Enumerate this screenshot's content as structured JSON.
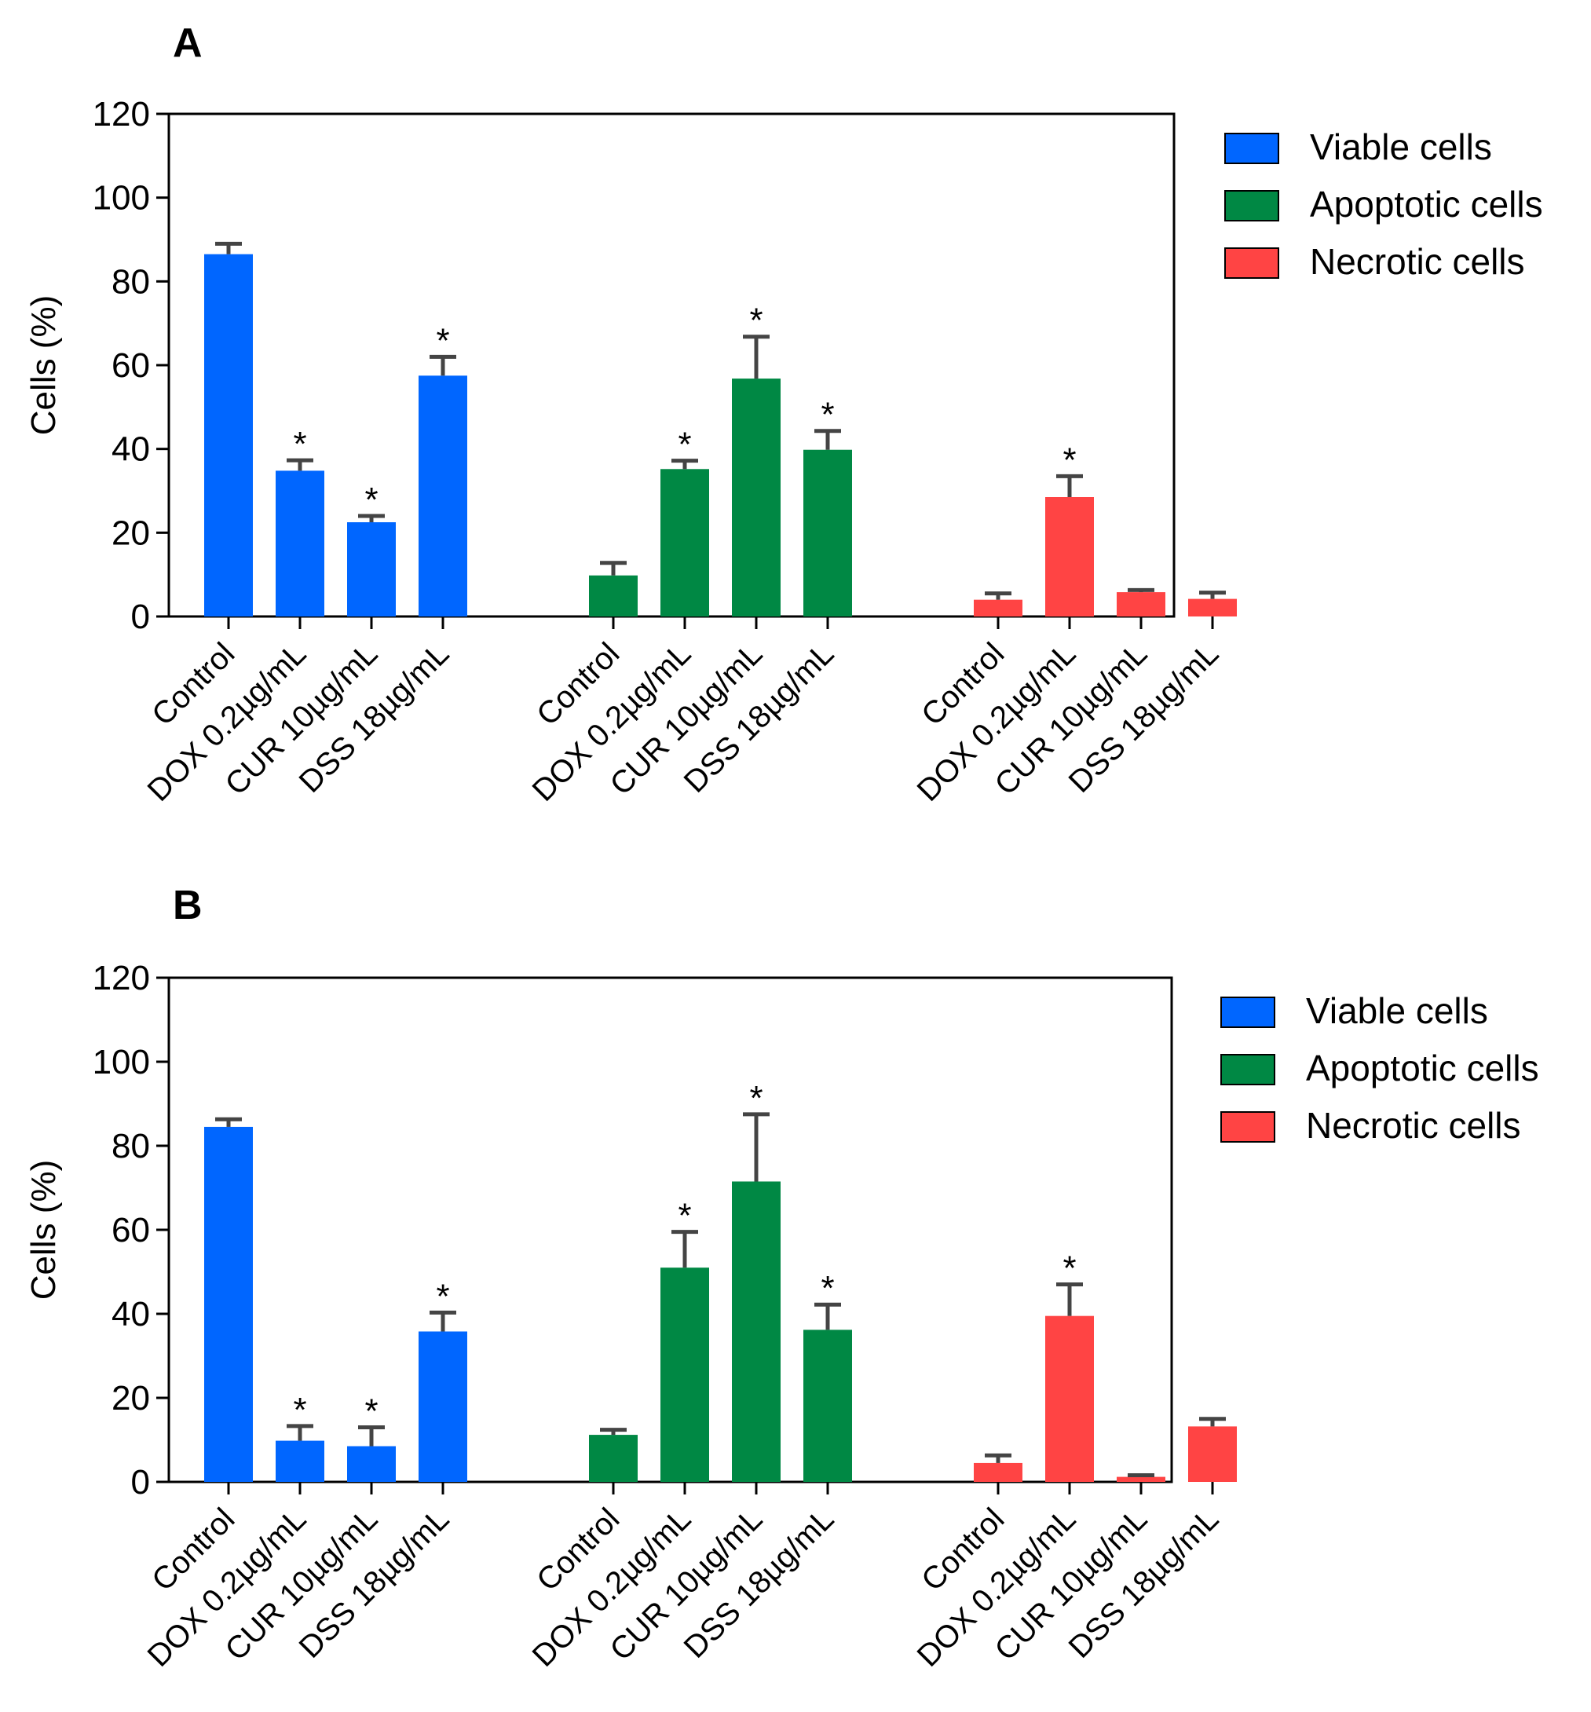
{
  "chart_data": [
    {
      "panel": "A",
      "type": "bar",
      "ylabel": "Cells (%)",
      "ylim": [
        0,
        120
      ],
      "yticks": [
        "0",
        "20",
        "40",
        "60",
        "80",
        "100",
        "120"
      ],
      "categories": [
        "Control",
        "DOX 0.2µg/mL",
        "CUR 10µg/mL",
        "DSS 18µg/mL"
      ],
      "legend": [
        "Viable cells",
        "Apoptotic cells",
        "Necrotic cells"
      ],
      "significance_mark": "*",
      "series": [
        {
          "name": "Viable cells",
          "color": "#0066FF",
          "values": [
            86.5,
            34.8,
            22.5,
            57.5
          ],
          "errors": [
            2.5,
            2.5,
            1.5,
            4.5
          ],
          "significant": [
            false,
            true,
            true,
            true
          ]
        },
        {
          "name": "Apoptotic cells",
          "color": "#008844",
          "values": [
            9.8,
            35.2,
            56.8,
            39.8
          ],
          "errors": [
            3.0,
            2.0,
            10.0,
            4.5
          ],
          "significant": [
            false,
            true,
            true,
            true
          ]
        },
        {
          "name": "Necrotic cells",
          "color": "#FF4444",
          "values": [
            4.0,
            28.5,
            5.8,
            4.2
          ],
          "errors": [
            1.5,
            5.0,
            0.5,
            1.5
          ],
          "significant": [
            false,
            true,
            false,
            false
          ]
        }
      ]
    },
    {
      "panel": "B",
      "type": "bar",
      "ylabel": "Cells (%)",
      "ylim": [
        0,
        120
      ],
      "yticks": [
        "0",
        "20",
        "40",
        "60",
        "80",
        "100",
        "120"
      ],
      "categories": [
        "Control",
        "DOX 0.2µg/mL",
        "CUR 10µg/mL",
        "DSS 18µg/mL"
      ],
      "legend": [
        "Viable cells",
        "Apoptotic cells",
        "Necrotic cells"
      ],
      "significance_mark": "*",
      "series": [
        {
          "name": "Viable cells",
          "color": "#0066FF",
          "values": [
            84.5,
            9.8,
            8.5,
            35.8
          ],
          "errors": [
            1.8,
            3.5,
            4.5,
            4.5
          ],
          "significant": [
            false,
            true,
            true,
            true
          ]
        },
        {
          "name": "Apoptotic cells",
          "color": "#008844",
          "values": [
            11.2,
            51.0,
            71.5,
            36.2
          ],
          "errors": [
            1.2,
            8.5,
            16.0,
            6.0
          ],
          "significant": [
            false,
            true,
            true,
            true
          ]
        },
        {
          "name": "Necrotic cells",
          "color": "#FF4444",
          "values": [
            4.5,
            39.5,
            1.2,
            13.2
          ],
          "errors": [
            1.8,
            7.5,
            0.4,
            1.8
          ],
          "significant": [
            false,
            true,
            false,
            false
          ]
        }
      ]
    }
  ]
}
